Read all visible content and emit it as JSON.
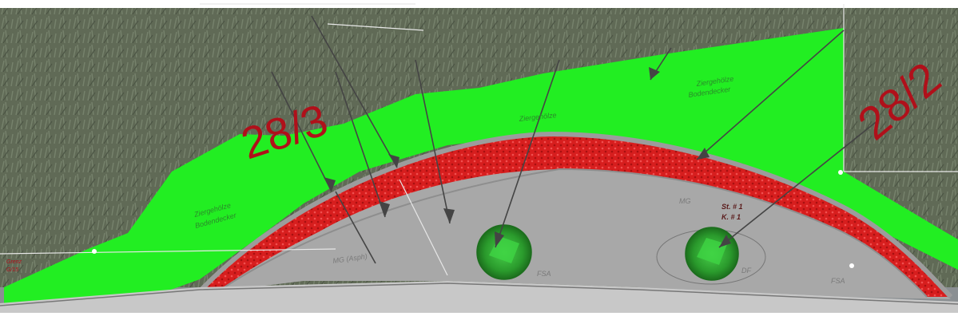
{
  "map": {
    "title": "",
    "parcels": [
      {
        "id": "parcel-left",
        "label": "28/3"
      },
      {
        "id": "parcel-right",
        "label": "28/2"
      }
    ],
    "area_labels": {
      "green_left": [
        "Ziergehölze",
        "Bodendecker"
      ],
      "green_top": [
        "Ziergehölze",
        "Bodendecker"
      ],
      "green_mid": "Ziergehölze",
      "grey_a": "MG (Asph)",
      "grey_b": "MG",
      "grey_c": "FSA",
      "grey_d": "FSA",
      "grey_e": "DF",
      "tree_ref_1": "St. # 1",
      "tree_ref_2": "K. # 1",
      "left_edge": "Grenz",
      "left_edge_2": "G/15"
    },
    "colors": {
      "planting": "#22ee22",
      "paving_red": "#dd2222",
      "paving_grey": "#a8a8a8",
      "curb": "#c8c8c8",
      "tree_dark": "#1f7a1f",
      "tree_light": "#36c23a",
      "parcel_text": "#b0101a",
      "leader_line": "#444444"
    }
  }
}
